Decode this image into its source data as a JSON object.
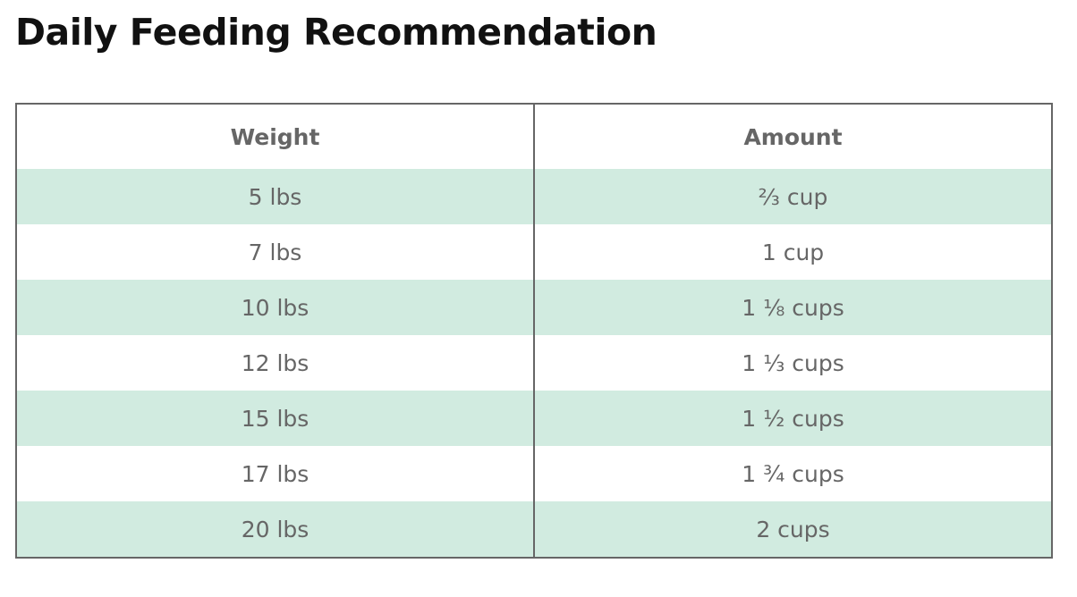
{
  "title": "Daily Feeding Recommendation",
  "table": {
    "headers": [
      "Weight",
      "Amount"
    ],
    "rows": [
      [
        "5 lbs",
        "⅔ cup"
      ],
      [
        "7 lbs",
        "1 cup"
      ],
      [
        "10 lbs",
        "1 ⅛ cups"
      ],
      [
        "12 lbs",
        "1 ⅓ cups"
      ],
      [
        "15 lbs",
        "1 ½ cups"
      ],
      [
        "17 lbs",
        "1 ¾ cups"
      ],
      [
        "20 lbs",
        "2 cups"
      ]
    ]
  },
  "colors": {
    "stripe": "#d1ebe0",
    "text": "#666666",
    "border": "#666666"
  }
}
